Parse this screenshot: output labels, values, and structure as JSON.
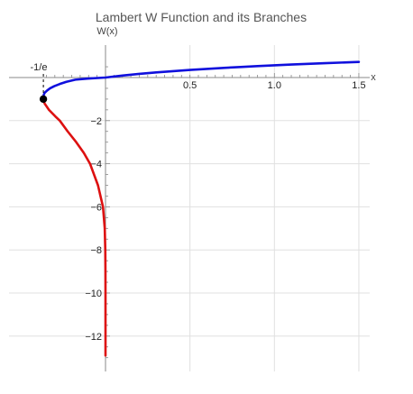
{
  "chart_data": {
    "type": "line",
    "title": "Lambert W Function and its Branches",
    "xlabel": "x",
    "ylabel": "W(x)",
    "xlim": [
      -0.36788,
      1.5
    ],
    "ylim": [
      -13.5,
      1.0
    ],
    "x_ticks": [
      0.5,
      1.0,
      1.5
    ],
    "x_tick_labels": [
      "0.5",
      "1.0",
      "1.5"
    ],
    "y_ticks": [
      -2,
      -4,
      -6,
      -8,
      -10,
      -12
    ],
    "y_tick_labels": [
      "−2",
      "−4",
      "−6",
      "−8",
      "−10",
      "−12"
    ],
    "grid": true,
    "legend": "none",
    "series": [
      {
        "color": "#1010dd",
        "x": [
          -0.36788,
          -0.3656,
          -0.3595,
          -0.3452,
          -0.3283,
          -0.3033,
          -0.2707,
          -0.2317,
          -0.1785,
          -0.1075,
          0.0,
          0.1,
          0.2,
          0.3,
          0.4,
          0.5,
          0.6,
          0.7,
          0.8,
          0.9,
          1.0,
          1.1,
          1.2,
          1.3,
          1.4,
          1.5
        ],
        "values": [
          -1.0,
          -0.8,
          -0.7,
          -0.6,
          -0.5,
          -0.4,
          -0.3,
          -0.2,
          -0.1,
          -0.05,
          0.0,
          0.0913,
          0.1689,
          0.2367,
          0.2971,
          0.3517,
          0.4016,
          0.4475,
          0.4902,
          0.5302,
          0.5671,
          0.6019,
          0.6348,
          0.666,
          0.6956,
          0.7259
        ]
      },
      {
        "color": "#dd1010",
        "x": [
          -0.36788,
          -0.3609,
          -0.3347,
          -0.2975,
          -0.2707,
          -0.224,
          -0.1733,
          -0.1283,
          -0.0916,
          -0.0446,
          -0.0149,
          -0.0045,
          -0.0013,
          -0.00034,
          -7.37e-05,
          -7.4e-06
        ],
        "values": [
          -1.0,
          -1.2,
          -1.5,
          -1.8,
          -2.0,
          -2.5,
          -3.0,
          -3.5,
          -4.0,
          -5.0,
          -6.0,
          -7.0,
          -8.0,
          -9.0,
          -10.0,
          -12.9
        ]
      }
    ],
    "branch_point": {
      "x": -0.36788,
      "y": -1.0,
      "label": "-1/e"
    }
  },
  "colors": {
    "background": "#ffffff",
    "grid": "#e0e0e0",
    "axis": "#888888",
    "upper_branch": "#1010dd",
    "lower_branch": "#dd1010",
    "point": "#000000"
  }
}
